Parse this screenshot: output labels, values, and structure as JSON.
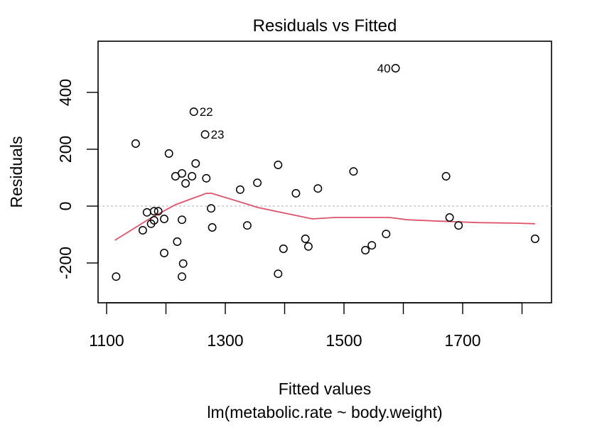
{
  "chart_data": {
    "type": "scatter",
    "title": "Residuals vs Fitted",
    "xlabel": "Fitted values",
    "subtitle": "lm(metabolic.rate ~ body.weight)",
    "ylabel": "Residuals",
    "xlim": [
      1100,
      1840
    ],
    "ylim": [
      -340,
      580
    ],
    "x_ticks": [
      1100,
      1200,
      1300,
      1400,
      1500,
      1600,
      1700,
      1800
    ],
    "x_tick_labels": [
      "1100",
      "",
      "1300",
      "",
      "1500",
      "",
      "1700",
      ""
    ],
    "y_ticks": [
      -200,
      0,
      200,
      400
    ],
    "y_tick_labels": [
      "-200",
      "0",
      "200",
      "400"
    ],
    "reference_line": {
      "y": 0,
      "style": "dotted",
      "color": "#bebebe"
    },
    "points": [
      {
        "x": 1116,
        "y": -248
      },
      {
        "x": 1149,
        "y": 220
      },
      {
        "x": 1161,
        "y": -85
      },
      {
        "x": 1168,
        "y": -22
      },
      {
        "x": 1175,
        "y": -62
      },
      {
        "x": 1180,
        "y": -18
      },
      {
        "x": 1187,
        "y": -18
      },
      {
        "x": 1180,
        "y": -50
      },
      {
        "x": 1197,
        "y": -45
      },
      {
        "x": 1205,
        "y": 185
      },
      {
        "x": 1197,
        "y": -165
      },
      {
        "x": 1216,
        "y": 105
      },
      {
        "x": 1219,
        "y": -125
      },
      {
        "x": 1227,
        "y": 115
      },
      {
        "x": 1227,
        "y": -48
      },
      {
        "x": 1229,
        "y": -202
      },
      {
        "x": 1227,
        "y": -248
      },
      {
        "x": 1233,
        "y": 80
      },
      {
        "x": 1244,
        "y": 105
      },
      {
        "x": 1250,
        "y": 150
      },
      {
        "x": 1247,
        "y": 332,
        "label": "22",
        "label_side": "right"
      },
      {
        "x": 1266,
        "y": 252,
        "label": "23",
        "label_side": "right"
      },
      {
        "x": 1268,
        "y": 98
      },
      {
        "x": 1276,
        "y": -8
      },
      {
        "x": 1278,
        "y": -75
      },
      {
        "x": 1325,
        "y": 58
      },
      {
        "x": 1337,
        "y": -68
      },
      {
        "x": 1354,
        "y": 82
      },
      {
        "x": 1389,
        "y": 145
      },
      {
        "x": 1389,
        "y": -238
      },
      {
        "x": 1398,
        "y": -150
      },
      {
        "x": 1419,
        "y": 45
      },
      {
        "x": 1435,
        "y": -115
      },
      {
        "x": 1440,
        "y": -142
      },
      {
        "x": 1456,
        "y": 62
      },
      {
        "x": 1516,
        "y": 122
      },
      {
        "x": 1536,
        "y": -155
      },
      {
        "x": 1547,
        "y": -138
      },
      {
        "x": 1571,
        "y": -98
      },
      {
        "x": 1587,
        "y": 485,
        "label": "40",
        "label_side": "left"
      },
      {
        "x": 1672,
        "y": 105
      },
      {
        "x": 1678,
        "y": -40
      },
      {
        "x": 1693,
        "y": -68
      },
      {
        "x": 1822,
        "y": -115
      }
    ],
    "smooth_line": {
      "color": "#df536b",
      "points": [
        {
          "x": 1114,
          "y": -120
        },
        {
          "x": 1172,
          "y": -45
        },
        {
          "x": 1216,
          "y": 5
        },
        {
          "x": 1268,
          "y": 45
        },
        {
          "x": 1277,
          "y": 45
        },
        {
          "x": 1340,
          "y": 5
        },
        {
          "x": 1355,
          "y": -5
        },
        {
          "x": 1447,
          "y": -45
        },
        {
          "x": 1484,
          "y": -40
        },
        {
          "x": 1577,
          "y": -40
        },
        {
          "x": 1607,
          "y": -48
        },
        {
          "x": 1651,
          "y": -52
        },
        {
          "x": 1726,
          "y": -58
        },
        {
          "x": 1791,
          "y": -60
        },
        {
          "x": 1822,
          "y": -62
        }
      ]
    },
    "grid": false,
    "legend": "none"
  }
}
